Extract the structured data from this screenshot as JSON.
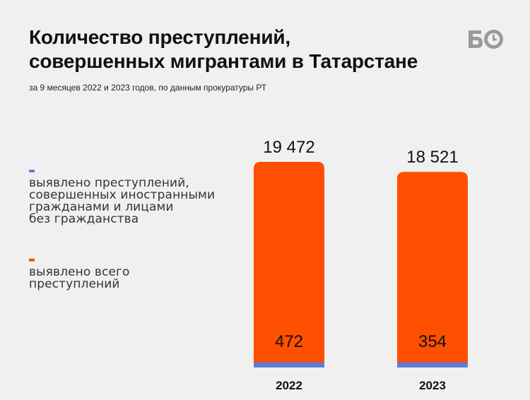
{
  "header": {
    "title_line1": "Количество преступлений,",
    "title_line2": "совершенных мигрантами в Татарстане",
    "subtitle": "за 9 месяцев 2022 и 2023 годов, по данным прокуратуры РТ",
    "logo": "БО"
  },
  "legend": {
    "items": [
      {
        "line1": "выявлено преступлений,",
        "line2": "совершенных иностранными",
        "line3": "гражданами и лицами",
        "line4": "без гражданства",
        "color": "#5b7fd6"
      },
      {
        "line1": "выявлено всего",
        "line2": "преступлений",
        "color": "#ff4f00"
      }
    ]
  },
  "chart_data": {
    "type": "bar",
    "title": "Количество преступлений, совершенных мигрантами в Татарстане",
    "subtitle": "за 9 месяцев 2022 и 2023 годов, по данным прокуратуры РТ",
    "categories": [
      "2022",
      "2023"
    ],
    "series": [
      {
        "name": "выявлено всего преступлений",
        "color": "#ff4f00",
        "values": [
          19472,
          18521
        ],
        "labels": [
          "19 472",
          "18 521"
        ]
      },
      {
        "name": "выявлено преступлений, совершенных иностранными гражданами и лицами без гражданства",
        "color": "#5b7fd6",
        "values": [
          472,
          354
        ],
        "labels": [
          "472",
          "354"
        ]
      }
    ],
    "ylim": [
      0,
      19472
    ],
    "grid": false,
    "legend_position": "left"
  }
}
